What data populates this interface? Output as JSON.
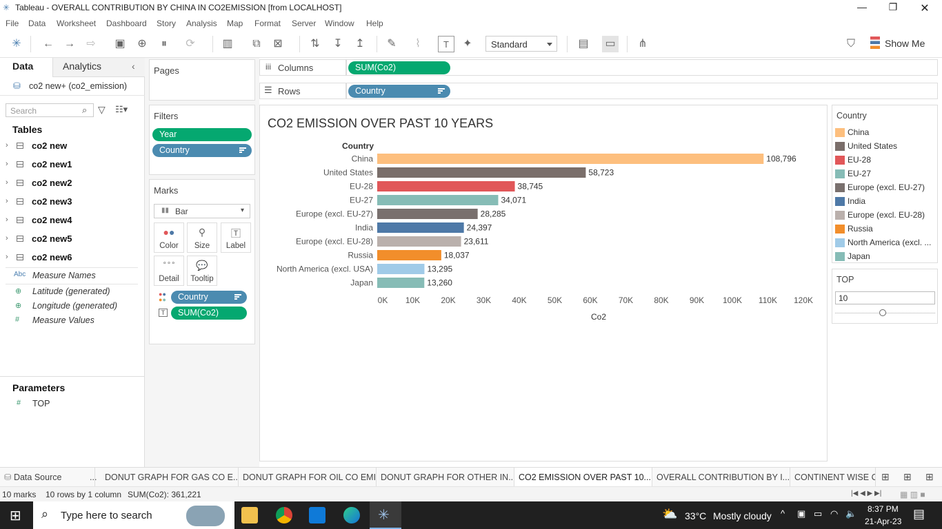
{
  "window": {
    "title": "Tableau - OVERALL CONTRIBUTION BY CHINA IN CO2EMISSION [from LOCALHOST]"
  },
  "menu": [
    "File",
    "Data",
    "Worksheet",
    "Dashboard",
    "Story",
    "Analysis",
    "Map",
    "Format",
    "Server",
    "Window",
    "Help"
  ],
  "toolbar": {
    "fit": "Standard",
    "show_me": "Show Me"
  },
  "left": {
    "tabs": {
      "data": "Data",
      "analytics": "Analytics"
    },
    "datasource": "co2 new+ (co2_emission)",
    "search_placeholder": "Search",
    "tables_heading": "Tables",
    "tables": [
      "co2 new",
      "co2 new1",
      "co2 new2",
      "co2 new3",
      "co2 new4",
      "co2 new5",
      "co2 new6"
    ],
    "fields": [
      {
        "icon": "Abc",
        "name": "Measure Names"
      },
      {
        "icon": "⊕",
        "name": "Latitude (generated)"
      },
      {
        "icon": "⊕",
        "name": "Longitude (generated)"
      },
      {
        "icon": "#",
        "name": "Measure Values"
      }
    ],
    "params_heading": "Parameters",
    "params": [
      {
        "icon": "#",
        "name": "TOP"
      }
    ]
  },
  "pages": {
    "label": "Pages"
  },
  "filters": {
    "label": "Filters",
    "pills": [
      "Year",
      "Country"
    ]
  },
  "marks": {
    "label": "Marks",
    "type": "Bar",
    "buttons": [
      "Color",
      "Size",
      "Label",
      "Detail",
      "Tooltip"
    ],
    "pills": [
      "Country",
      "SUM(Co2)"
    ]
  },
  "shelves": {
    "columns_label": "Columns",
    "columns_pill": "SUM(Co2)",
    "rows_label": "Rows",
    "rows_pill": "Country"
  },
  "chart_data": {
    "type": "bar",
    "orientation": "horizontal",
    "title": "CO2 EMISSION OVER PAST 10 YEARS",
    "row_header": "Country",
    "xlabel": "Co2",
    "categories": [
      "China",
      "United States",
      "EU-28",
      "EU-27",
      "Europe (excl. EU-27)",
      "India",
      "Europe (excl. EU-28)",
      "Russia",
      "North America (excl. USA)",
      "Japan"
    ],
    "values": [
      108796,
      58723,
      38745,
      34071,
      28285,
      24397,
      23611,
      18037,
      13295,
      13260
    ],
    "value_labels": [
      "108,796",
      "58,723",
      "38,745",
      "34,071",
      "28,285",
      "24,397",
      "23,611",
      "18,037",
      "13,295",
      "13,260"
    ],
    "colors": [
      "#fdbf7e",
      "#7a6e6a",
      "#e15759",
      "#86bcb6",
      "#79706e",
      "#4e79a7",
      "#bab0ac",
      "#f28e2b",
      "#a0cbe8",
      "#86bcb6"
    ],
    "xticks": [
      "0K",
      "10K",
      "20K",
      "30K",
      "40K",
      "50K",
      "60K",
      "70K",
      "80K",
      "90K",
      "100K",
      "110K",
      "120K"
    ],
    "xlim": [
      0,
      120000
    ],
    "grid": false
  },
  "legend": {
    "title": "Country",
    "items": [
      {
        "label": "China",
        "color": "#fdbf7e"
      },
      {
        "label": "United States",
        "color": "#7a6e6a"
      },
      {
        "label": "EU-28",
        "color": "#e15759"
      },
      {
        "label": "EU-27",
        "color": "#86bcb6"
      },
      {
        "label": "Europe (excl. EU-27)",
        "color": "#79706e"
      },
      {
        "label": "India",
        "color": "#4e79a7"
      },
      {
        "label": "Europe (excl. EU-28)",
        "color": "#bab0ac"
      },
      {
        "label": "Russia",
        "color": "#f28e2b"
      },
      {
        "label": "North America (excl. ...",
        "color": "#a0cbe8"
      },
      {
        "label": "Japan",
        "color": "#86bcb6"
      }
    ]
  },
  "top_param": {
    "label": "TOP",
    "value": "10"
  },
  "sheet_tabs": [
    {
      "label": "Data Source",
      "active": false
    },
    {
      "label": "...",
      "active": false
    },
    {
      "label": "DONUT GRAPH FOR GAS CO E...",
      "active": false
    },
    {
      "label": "DONUT GRAPH FOR OIL CO EMI...",
      "active": false
    },
    {
      "label": "DONUT GRAPH FOR OTHER IN...",
      "active": false
    },
    {
      "label": "CO2 EMISSION OVER PAST 10...",
      "active": true
    },
    {
      "label": "OVERALL CONTRIBUTION BY I...",
      "active": false
    },
    {
      "label": "CONTINENT WISE CO",
      "active": false
    }
  ],
  "status": {
    "marks": "10 marks",
    "rows": "10 rows by 1 column",
    "sum": "SUM(Co2): 361,221"
  },
  "taskbar": {
    "search": "Type here to search",
    "weather_temp": "33°C",
    "weather_desc": "Mostly cloudy",
    "time": "8:37 PM",
    "date": "21-Apr-23"
  }
}
